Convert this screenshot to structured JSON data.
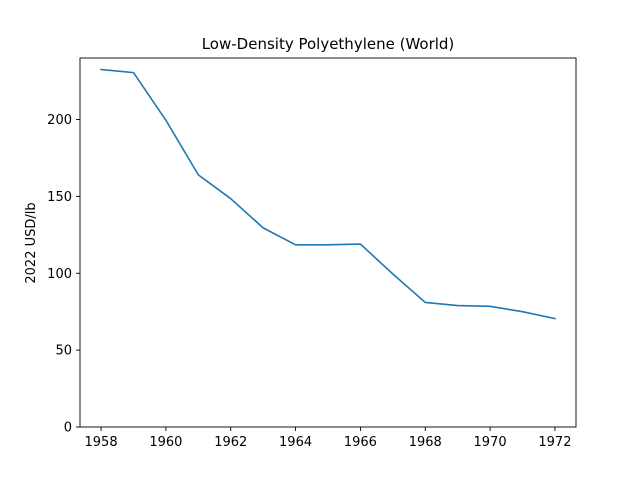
{
  "chart_data": {
    "type": "line",
    "title": "Low-Density Polyethylene (World)",
    "xlabel": "",
    "ylabel": "2022 USD/lb",
    "xlim": [
      1957.35,
      1972.65
    ],
    "ylim": [
      0,
      240
    ],
    "xticks": [
      1958,
      1960,
      1962,
      1964,
      1966,
      1968,
      1970,
      1972
    ],
    "yticks": [
      0,
      50,
      100,
      150,
      200
    ],
    "grid": false,
    "series": [
      {
        "color": "#1f77b4",
        "x": [
          1958,
          1959,
          1960,
          1961,
          1962,
          1963,
          1964,
          1965,
          1966,
          1967,
          1968,
          1969,
          1970,
          1971,
          1972
        ],
        "y": [
          232.5,
          230.5,
          199.5,
          164,
          148.5,
          129.5,
          118.5,
          118.5,
          119,
          99.5,
          81,
          79,
          78.5,
          75,
          70.5
        ]
      }
    ]
  }
}
